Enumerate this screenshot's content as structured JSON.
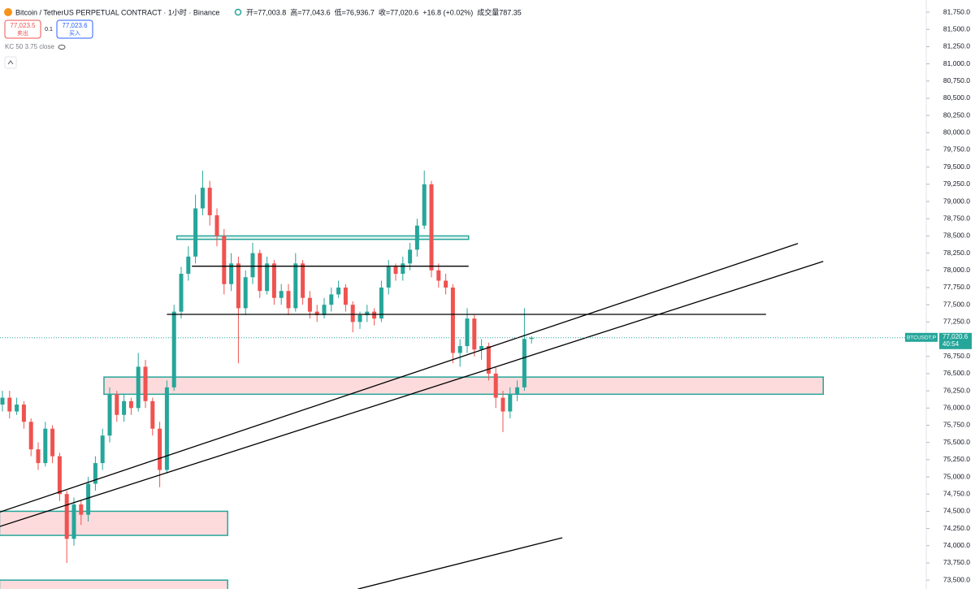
{
  "header": {
    "title": "Bitcoin / TetherUS PERPETUAL CONTRACT · 1小时 · Binance",
    "ohlc": [
      "开=77,003.8",
      "高=77,043.6",
      "低=76,936.7",
      "收=77,020.6",
      "+16.8 (+0.02%)",
      "成交量787.35"
    ],
    "sell_price": "77,023.5",
    "sell_label": "卖出",
    "quantity": "0.1",
    "buy_price": "77,023.6",
    "buy_label": "买入",
    "indicator": "KC 50 3.75 close"
  },
  "chart_data": {
    "type": "candlestick",
    "up_color": "#26a69a",
    "down_color": "#ef5350",
    "open": [
      76050,
      76150,
      75950,
      76050,
      75800,
      75400,
      75200,
      75700,
      75300,
      74750,
      74100,
      74600,
      74450,
      74900,
      75200,
      75600,
      76200,
      75900,
      76100,
      76000,
      76600,
      76100,
      75700,
      75100,
      76300,
      77400,
      77950,
      78200,
      78900,
      79200,
      78800,
      78500,
      77800,
      78100,
      77450,
      77900,
      78250,
      77700,
      78100,
      77600,
      77700,
      77450,
      78100,
      77600,
      77400,
      77350,
      77500,
      77650,
      77750,
      77500,
      77250,
      77350,
      77400,
      77300,
      77750,
      78050,
      77950,
      78100,
      78300,
      78650,
      79250,
      78000,
      77850,
      77750,
      76800,
      76900,
      77300,
      76850,
      76900,
      76500,
      76150,
      75950,
      76200,
      76300,
      77003.8
    ],
    "high": [
      76250,
      76250,
      76150,
      76100,
      75850,
      75500,
      75800,
      75750,
      75350,
      74800,
      74700,
      74650,
      75000,
      75300,
      75700,
      76300,
      76250,
      76200,
      76150,
      76800,
      76700,
      76150,
      75800,
      76400,
      77500,
      78050,
      78350,
      79100,
      79450,
      79300,
      78900,
      78600,
      78250,
      78200,
      78000,
      78400,
      78300,
      78200,
      78150,
      77800,
      77800,
      78250,
      78150,
      77700,
      77500,
      77600,
      77750,
      77850,
      77800,
      77550,
      77400,
      77500,
      77450,
      77850,
      78150,
      78100,
      78200,
      78400,
      78750,
      79450,
      79300,
      78100,
      77950,
      77800,
      77000,
      77450,
      77350,
      77000,
      76950,
      76600,
      76250,
      76300,
      76400,
      77450,
      77043.6
    ],
    "low": [
      75950,
      75850,
      75900,
      75700,
      75300,
      75100,
      75150,
      75200,
      74650,
      73750,
      74000,
      74300,
      74350,
      74800,
      75100,
      75500,
      75800,
      75800,
      75900,
      75950,
      76000,
      75600,
      74850,
      75050,
      76250,
      77300,
      77850,
      78100,
      78800,
      78650,
      78350,
      77650,
      77700,
      76650,
      77350,
      77800,
      77600,
      77650,
      77500,
      77500,
      77350,
      77400,
      77500,
      77300,
      77250,
      77300,
      77400,
      77600,
      77400,
      77100,
      77150,
      77250,
      77200,
      77250,
      77650,
      77850,
      77850,
      78000,
      78200,
      78600,
      77900,
      77750,
      77650,
      76650,
      76600,
      76800,
      76750,
      76700,
      76400,
      76000,
      75650,
      75850,
      76100,
      76250,
      76936.7
    ],
    "close": [
      76150,
      75950,
      76050,
      75800,
      75400,
      75200,
      75700,
      75300,
      74750,
      74100,
      74600,
      74450,
      74900,
      75200,
      75600,
      76200,
      75900,
      76100,
      76000,
      76600,
      76100,
      75700,
      75100,
      76300,
      77400,
      77950,
      78200,
      78900,
      79200,
      78800,
      78500,
      77800,
      78100,
      77450,
      77900,
      78250,
      77700,
      78100,
      77600,
      77700,
      77450,
      78100,
      77600,
      77400,
      77350,
      77500,
      77650,
      77750,
      77500,
      77250,
      77350,
      77400,
      77300,
      77750,
      78050,
      77950,
      78100,
      78300,
      78650,
      79250,
      78000,
      77850,
      77750,
      76800,
      76900,
      77300,
      76850,
      76900,
      76500,
      76150,
      75950,
      76200,
      76300,
      77003.8,
      77020.6
    ],
    "ylim": [
      73372,
      81927
    ],
    "yticks": [
      {
        "value": 81750,
        "label": "81,750.0"
      },
      {
        "value": 81500,
        "label": "81,500.0"
      },
      {
        "value": 81250,
        "label": "81,250.0"
      },
      {
        "value": 81000,
        "label": "81,000.0"
      },
      {
        "value": 80750,
        "label": "80,750.0"
      },
      {
        "value": 80500,
        "label": "80,500.0"
      },
      {
        "value": 80250,
        "label": "80,250.0"
      },
      {
        "value": 80000,
        "label": "80,000.0"
      },
      {
        "value": 79750,
        "label": "79,750.0"
      },
      {
        "value": 79500,
        "label": "79,500.0"
      },
      {
        "value": 79250,
        "label": "79,250.0"
      },
      {
        "value": 79000,
        "label": "79,000.0"
      },
      {
        "value": 78750,
        "label": "78,750.0"
      },
      {
        "value": 78500,
        "label": "78,500.0"
      },
      {
        "value": 78250,
        "label": "78,250.0"
      },
      {
        "value": 78000,
        "label": "78,000.0"
      },
      {
        "value": 77750,
        "label": "77,750.0"
      },
      {
        "value": 77500,
        "label": "77,500.0"
      },
      {
        "value": 77250,
        "label": "77,250.0"
      },
      {
        "value": 76750,
        "label": "76,750.0"
      },
      {
        "value": 76500,
        "label": "76,500.0"
      },
      {
        "value": 76250,
        "label": "76,250.0"
      },
      {
        "value": 76000,
        "label": "76,000.0"
      },
      {
        "value": 75750,
        "label": "75,750.0"
      },
      {
        "value": 75500,
        "label": "75,500.0"
      },
      {
        "value": 75250,
        "label": "75,250.0"
      },
      {
        "value": 75000,
        "label": "75,000.0"
      },
      {
        "value": 74750,
        "label": "74,750.0"
      },
      {
        "value": 74500,
        "label": "74,500.0"
      },
      {
        "value": 74250,
        "label": "74,250.0"
      },
      {
        "value": 74000,
        "label": "74,000.0"
      },
      {
        "value": 73750,
        "label": "73,750.0"
      },
      {
        "value": 73500,
        "label": "73,500.0"
      }
    ],
    "last_price": {
      "symbol": "BTCUSDT.P",
      "price": "77,020.6",
      "countdown": "40:54"
    },
    "zones": [
      {
        "x0": 24.4,
        "x1": 65.2,
        "y0": 78450,
        "y1": 78500,
        "color": "#26a69a"
      },
      {
        "x0": 14.2,
        "x1": 114.8,
        "y0": 76200,
        "y1": 76450,
        "color": "#f7a1a8"
      },
      {
        "x0": -0.4,
        "x1": 31.5,
        "y0": 74150,
        "y1": 74500,
        "color": "#f7a1a8"
      },
      {
        "x0": -0.4,
        "x1": 31.5,
        "y0": 73250,
        "y1": 73500,
        "color": "#f7a1a8"
      }
    ],
    "lines": [
      {
        "x0": 26.5,
        "x1": 65.2,
        "y0": 78060,
        "y1": 78060
      },
      {
        "x0": 23,
        "x1": 106.8,
        "y0": 77360,
        "y1": 77360
      },
      {
        "x0": -0.34,
        "x1": 111.25,
        "y0": 74490,
        "y1": 78390
      },
      {
        "x0": -0.34,
        "x1": 114.8,
        "y0": 74280,
        "y1": 78130
      },
      {
        "x0": 49.7,
        "x1": 78.3,
        "y0": 73370,
        "y1": 74115
      }
    ]
  }
}
